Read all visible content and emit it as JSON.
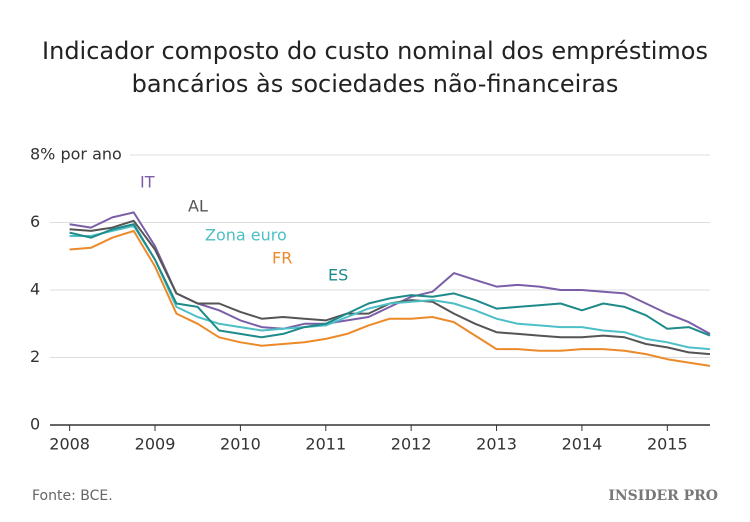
{
  "chart_data": {
    "type": "line",
    "title": [
      "Indicador composto do custo nominal dos empréstimos",
      "bancários às sociedades não-financeiras"
    ],
    "source": "Fonte: BCE.",
    "logo": "INSIDER PRO",
    "x": [
      2008,
      2008.25,
      2008.5,
      2008.75,
      2009,
      2009.25,
      2009.5,
      2009.75,
      2010,
      2010.25,
      2010.5,
      2010.75,
      2011,
      2011.25,
      2011.5,
      2011.75,
      2012,
      2012.25,
      2012.5,
      2012.75,
      2013,
      2013.25,
      2013.5,
      2013.75,
      2014,
      2014.25,
      2014.5,
      2014.75,
      2015,
      2015.25,
      2015.5
    ],
    "xlim": [
      2007.77,
      2015.5
    ],
    "xticks": [
      2008,
      2009,
      2010,
      2011,
      2012,
      2013,
      2014,
      2015
    ],
    "ylim": [
      0,
      8
    ],
    "yticks": [
      0,
      2,
      4,
      6,
      {
        "value": 8,
        "label": "8% por ano"
      }
    ],
    "grid": true,
    "series": [
      {
        "name": "IT",
        "color": "#7a5fa8",
        "values": [
          5.95,
          5.85,
          6.15,
          6.3,
          5.3,
          3.9,
          3.6,
          3.4,
          3.1,
          2.9,
          2.85,
          3.0,
          3.0,
          3.1,
          3.2,
          3.5,
          3.8,
          3.95,
          4.5,
          4.3,
          4.1,
          4.15,
          4.1,
          4.0,
          4.0,
          3.95,
          3.9,
          3.6,
          3.3,
          3.05,
          2.7
        ]
      },
      {
        "name": "AL",
        "color": "#555555",
        "values": [
          5.8,
          5.75,
          5.85,
          6.05,
          5.2,
          3.9,
          3.6,
          3.6,
          3.35,
          3.15,
          3.2,
          3.15,
          3.1,
          3.3,
          3.3,
          3.6,
          3.7,
          3.65,
          3.3,
          3.0,
          2.75,
          2.7,
          2.65,
          2.6,
          2.6,
          2.65,
          2.6,
          2.4,
          2.3,
          2.15,
          2.1
        ]
      },
      {
        "name": "Zona euro",
        "color": "#4dbfc6",
        "values": [
          5.6,
          5.6,
          5.75,
          5.9,
          4.9,
          3.5,
          3.2,
          3.0,
          2.9,
          2.8,
          2.85,
          2.9,
          2.95,
          3.2,
          3.45,
          3.6,
          3.65,
          3.7,
          3.6,
          3.4,
          3.15,
          3.0,
          2.95,
          2.9,
          2.9,
          2.8,
          2.75,
          2.55,
          2.45,
          2.3,
          2.25
        ]
      },
      {
        "name": "FR",
        "color": "#ec8a2a",
        "values": [
          5.2,
          5.25,
          5.55,
          5.75,
          4.7,
          3.3,
          3.0,
          2.6,
          2.45,
          2.35,
          2.4,
          2.45,
          2.55,
          2.7,
          2.95,
          3.15,
          3.15,
          3.2,
          3.05,
          2.65,
          2.25,
          2.25,
          2.2,
          2.2,
          2.25,
          2.25,
          2.2,
          2.1,
          1.95,
          1.85,
          1.75
        ]
      },
      {
        "name": "ES",
        "color": "#1f8a8a",
        "values": [
          5.7,
          5.55,
          5.8,
          5.95,
          4.9,
          3.6,
          3.5,
          2.8,
          2.7,
          2.6,
          2.7,
          2.9,
          3.0,
          3.3,
          3.6,
          3.75,
          3.85,
          3.8,
          3.9,
          3.7,
          3.45,
          3.5,
          3.55,
          3.6,
          3.4,
          3.6,
          3.5,
          3.25,
          2.85,
          2.9,
          2.65
        ]
      }
    ]
  }
}
